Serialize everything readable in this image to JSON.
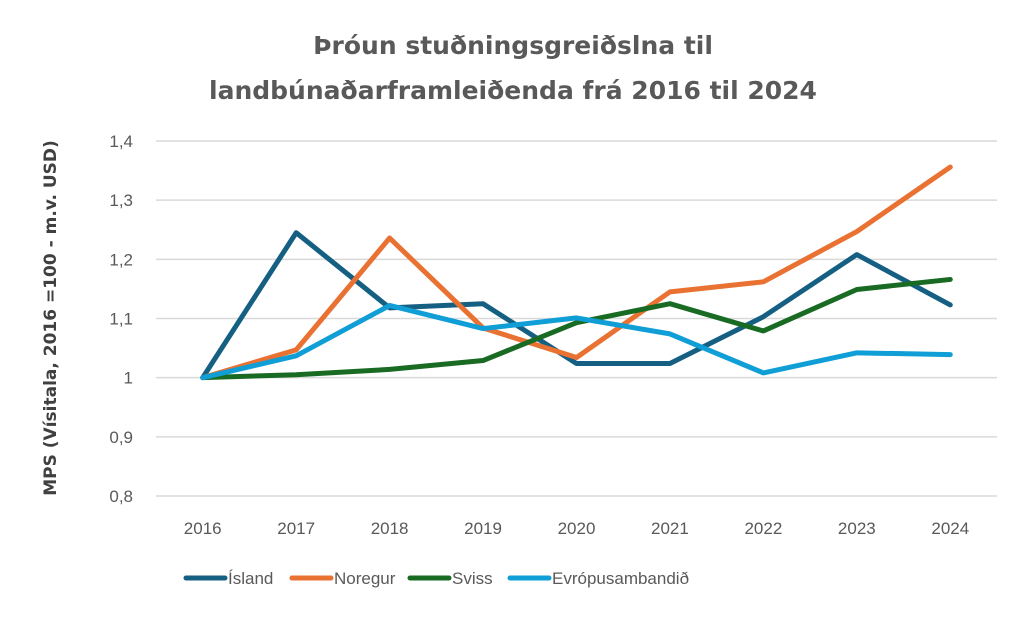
{
  "chart_data": {
    "type": "line",
    "title": [
      "Þróun stuðningsgreiðslna  til",
      "landbúnaðarframleiðenda  frá 2016 til 2024"
    ],
    "xlabel": "",
    "ylabel": "MPS  (Vísitala, 2016 =100 - m.v. USD)",
    "categories": [
      "2016",
      "2017",
      "2018",
      "2019",
      "2020",
      "2021",
      "2022",
      "2023",
      "2024"
    ],
    "ylim": [
      0.8,
      1.4
    ],
    "yticks": [
      0.8,
      0.9,
      1.0,
      1.1,
      1.2,
      1.3,
      1.4
    ],
    "ytick_labels": [
      "0,8",
      "0,9",
      "1",
      "1,1",
      "1,2",
      "1,3",
      "1,4"
    ],
    "grid": true,
    "legend_position": "bottom",
    "series": [
      {
        "name": "Ísland",
        "color": "#156082",
        "values": [
          1.0,
          1.245,
          1.118,
          1.125,
          1.024,
          1.024,
          1.103,
          1.208,
          1.123
        ]
      },
      {
        "name": "Noregur",
        "color": "#E97132",
        "values": [
          1.0,
          1.047,
          1.236,
          1.084,
          1.034,
          1.145,
          1.162,
          1.247,
          1.356
        ]
      },
      {
        "name": "Sviss",
        "color": "#196B24",
        "values": [
          1.0,
          1.005,
          1.014,
          1.029,
          1.093,
          1.125,
          1.079,
          1.149,
          1.166
        ]
      },
      {
        "name": "Evrópusambandið",
        "color": "#0F9ED5",
        "values": [
          1.0,
          1.037,
          1.122,
          1.083,
          1.101,
          1.074,
          1.008,
          1.042,
          1.039
        ]
      }
    ]
  }
}
